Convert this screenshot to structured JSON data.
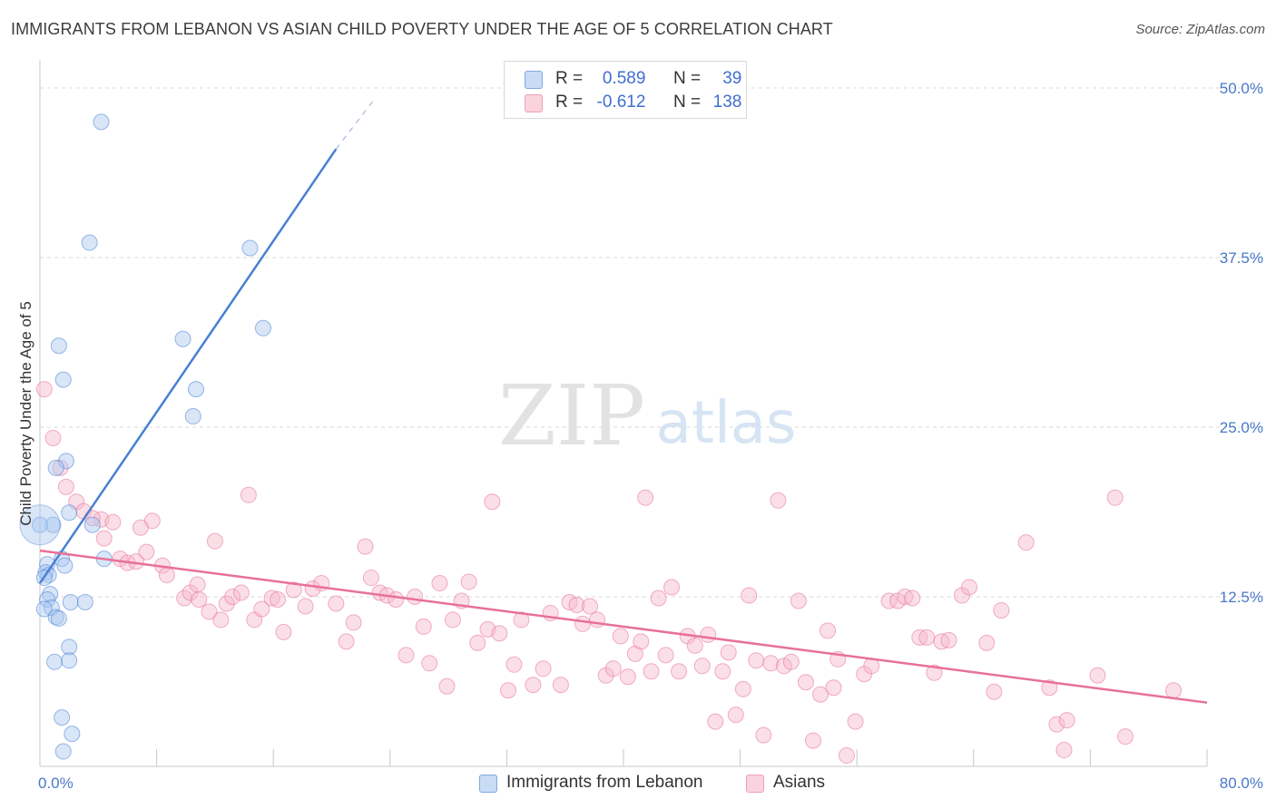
{
  "header": {
    "title": "IMMIGRANTS FROM LEBANON VS ASIAN CHILD POVERTY UNDER THE AGE OF 5 CORRELATION CHART",
    "source": "Source: ZipAtlas.com"
  },
  "watermark": {
    "zip": "ZIP",
    "atlas": "atlas"
  },
  "legend": {
    "rows": [
      {
        "r_label": "R =",
        "r_value": "0.589",
        "n_label": "N =",
        "n_value": "39",
        "color": "#a8c8f0"
      },
      {
        "r_label": "R =",
        "r_value": "-0.612",
        "n_label": "N =",
        "n_value": "138",
        "color": "#f6b8ca"
      }
    ]
  },
  "bottom_legend": {
    "items": [
      {
        "label": "Immigrants from Lebanon",
        "color": "#a8c8f0"
      },
      {
        "label": "Asians",
        "color": "#f6b8ca"
      }
    ]
  },
  "chart_data": {
    "type": "scatter",
    "ylabel": "Child Poverty Under the Age of 5",
    "xlim": [
      0,
      80
    ],
    "ylim": [
      0,
      50
    ],
    "y_ticks": [
      {
        "value": 12.5,
        "label": "12.5%"
      },
      {
        "value": 25,
        "label": "25.0%"
      },
      {
        "value": 37.5,
        "label": "37.5%"
      },
      {
        "value": 50,
        "label": "50.0%"
      }
    ],
    "x_tick_labels": [
      {
        "value": 0,
        "label": "0.0%"
      },
      {
        "value": 80,
        "label": "80.0%"
      }
    ],
    "series": [
      {
        "name": "Immigrants from Lebanon",
        "color": "#4a7fd4",
        "fill": "rgba(168,200,240,0.45)",
        "trend": {
          "x0": 0.0,
          "y0": 13.5,
          "x1": 20.3,
          "y1": 45.5,
          "dash_to_x": 22.8,
          "dash_to_y": 49.0
        },
        "points": [
          [
            4.2,
            47.5
          ],
          [
            3.4,
            38.6
          ],
          [
            14.4,
            38.2
          ],
          [
            15.3,
            32.3
          ],
          [
            9.8,
            31.5
          ],
          [
            1.3,
            31.0
          ],
          [
            1.6,
            28.5
          ],
          [
            10.7,
            27.8
          ],
          [
            10.5,
            25.8
          ],
          [
            1.8,
            22.5
          ],
          [
            1.1,
            22.0
          ],
          [
            2.0,
            18.7
          ],
          [
            0.9,
            17.8
          ],
          [
            3.6,
            17.8
          ],
          [
            0.0,
            17.8
          ],
          [
            4.4,
            15.3
          ],
          [
            1.5,
            15.3
          ],
          [
            1.7,
            14.8
          ],
          [
            0.5,
            14.9
          ],
          [
            0.4,
            14.3
          ],
          [
            0.6,
            14.1
          ],
          [
            0.3,
            13.9
          ],
          [
            0.7,
            12.7
          ],
          [
            0.5,
            12.3
          ],
          [
            2.1,
            12.1
          ],
          [
            3.1,
            12.1
          ],
          [
            0.8,
            11.7
          ],
          [
            0.3,
            11.6
          ],
          [
            1.1,
            11.0
          ],
          [
            1.3,
            10.9
          ],
          [
            2.0,
            8.8
          ],
          [
            1.0,
            7.7
          ],
          [
            2.0,
            7.8
          ],
          [
            1.5,
            3.6
          ],
          [
            2.2,
            2.4
          ],
          [
            1.6,
            1.1
          ]
        ],
        "big_points": [
          [
            0.0,
            17.8
          ]
        ]
      },
      {
        "name": "Asians",
        "color": "#e8709a",
        "fill": "rgba(246,184,202,0.45)",
        "trend": {
          "x0": 0.0,
          "y0": 15.9,
          "x1": 80.0,
          "y1": 4.7
        },
        "points": [
          [
            0.3,
            27.8
          ],
          [
            0.9,
            24.2
          ],
          [
            1.4,
            22.0
          ],
          [
            1.8,
            20.6
          ],
          [
            2.5,
            19.5
          ],
          [
            3.0,
            18.8
          ],
          [
            4.2,
            18.2
          ],
          [
            5.0,
            18.0
          ],
          [
            4.4,
            16.8
          ],
          [
            3.6,
            18.3
          ],
          [
            7.7,
            18.1
          ],
          [
            6.9,
            17.6
          ],
          [
            12.0,
            16.6
          ],
          [
            14.3,
            20.0
          ],
          [
            7.3,
            15.8
          ],
          [
            5.5,
            15.3
          ],
          [
            6.0,
            15.0
          ],
          [
            6.6,
            15.1
          ],
          [
            8.4,
            14.8
          ],
          [
            8.7,
            14.1
          ],
          [
            9.9,
            12.4
          ],
          [
            10.3,
            12.8
          ],
          [
            10.9,
            12.3
          ],
          [
            10.8,
            13.4
          ],
          [
            11.6,
            11.4
          ],
          [
            12.4,
            10.8
          ],
          [
            12.8,
            12.0
          ],
          [
            13.2,
            12.5
          ],
          [
            13.8,
            12.8
          ],
          [
            14.7,
            10.8
          ],
          [
            15.2,
            11.6
          ],
          [
            15.9,
            12.4
          ],
          [
            16.3,
            12.3
          ],
          [
            16.7,
            9.9
          ],
          [
            17.4,
            13.0
          ],
          [
            18.2,
            11.8
          ],
          [
            18.7,
            13.1
          ],
          [
            19.3,
            13.5
          ],
          [
            20.3,
            12.0
          ],
          [
            21.0,
            9.2
          ],
          [
            21.5,
            10.6
          ],
          [
            22.3,
            16.2
          ],
          [
            22.7,
            13.9
          ],
          [
            23.3,
            12.8
          ],
          [
            23.8,
            12.6
          ],
          [
            24.4,
            12.3
          ],
          [
            25.1,
            8.2
          ],
          [
            25.7,
            12.5
          ],
          [
            26.3,
            10.3
          ],
          [
            26.7,
            7.6
          ],
          [
            27.4,
            13.5
          ],
          [
            27.9,
            5.9
          ],
          [
            28.3,
            10.8
          ],
          [
            28.9,
            12.2
          ],
          [
            29.4,
            13.6
          ],
          [
            30.0,
            9.1
          ],
          [
            30.7,
            10.1
          ],
          [
            31.0,
            19.5
          ],
          [
            31.5,
            9.8
          ],
          [
            32.1,
            5.6
          ],
          [
            32.5,
            7.5
          ],
          [
            33.0,
            10.8
          ],
          [
            33.8,
            6.0
          ],
          [
            34.5,
            7.2
          ],
          [
            35.0,
            11.3
          ],
          [
            35.7,
            6.0
          ],
          [
            36.3,
            12.1
          ],
          [
            36.8,
            11.9
          ],
          [
            37.2,
            10.5
          ],
          [
            37.7,
            11.8
          ],
          [
            38.2,
            10.8
          ],
          [
            38.8,
            6.7
          ],
          [
            39.3,
            7.2
          ],
          [
            39.8,
            9.6
          ],
          [
            40.3,
            6.6
          ],
          [
            40.8,
            8.3
          ],
          [
            41.2,
            9.2
          ],
          [
            41.5,
            19.8
          ],
          [
            41.9,
            7.0
          ],
          [
            42.4,
            12.4
          ],
          [
            42.9,
            8.2
          ],
          [
            43.3,
            13.2
          ],
          [
            43.8,
            7.0
          ],
          [
            44.4,
            9.6
          ],
          [
            44.9,
            8.9
          ],
          [
            45.4,
            7.4
          ],
          [
            45.8,
            9.7
          ],
          [
            46.3,
            3.3
          ],
          [
            46.8,
            7.0
          ],
          [
            47.2,
            8.4
          ],
          [
            47.7,
            3.8
          ],
          [
            48.2,
            5.7
          ],
          [
            48.6,
            12.6
          ],
          [
            49.1,
            7.8
          ],
          [
            49.6,
            2.3
          ],
          [
            50.1,
            7.6
          ],
          [
            50.6,
            19.6
          ],
          [
            51.0,
            7.4
          ],
          [
            51.5,
            7.7
          ],
          [
            52.0,
            12.2
          ],
          [
            52.5,
            6.2
          ],
          [
            53.0,
            1.9
          ],
          [
            53.5,
            5.3
          ],
          [
            54.0,
            10.0
          ],
          [
            54.4,
            5.8
          ],
          [
            54.7,
            7.9
          ],
          [
            55.3,
            0.8
          ],
          [
            55.9,
            3.3
          ],
          [
            56.5,
            6.8
          ],
          [
            57.0,
            7.4
          ],
          [
            58.2,
            12.2
          ],
          [
            58.8,
            12.2
          ],
          [
            59.3,
            12.5
          ],
          [
            59.8,
            12.4
          ],
          [
            60.3,
            9.5
          ],
          [
            60.8,
            9.5
          ],
          [
            61.3,
            6.9
          ],
          [
            61.8,
            9.2
          ],
          [
            62.3,
            9.3
          ],
          [
            63.2,
            12.6
          ],
          [
            63.7,
            13.2
          ],
          [
            64.9,
            9.1
          ],
          [
            65.4,
            5.5
          ],
          [
            65.9,
            11.5
          ],
          [
            67.6,
            16.5
          ],
          [
            69.2,
            5.8
          ],
          [
            69.7,
            3.1
          ],
          [
            70.2,
            1.2
          ],
          [
            70.4,
            3.4
          ],
          [
            72.5,
            6.7
          ],
          [
            73.7,
            19.8
          ],
          [
            74.4,
            2.2
          ],
          [
            77.7,
            5.6
          ]
        ]
      }
    ]
  }
}
